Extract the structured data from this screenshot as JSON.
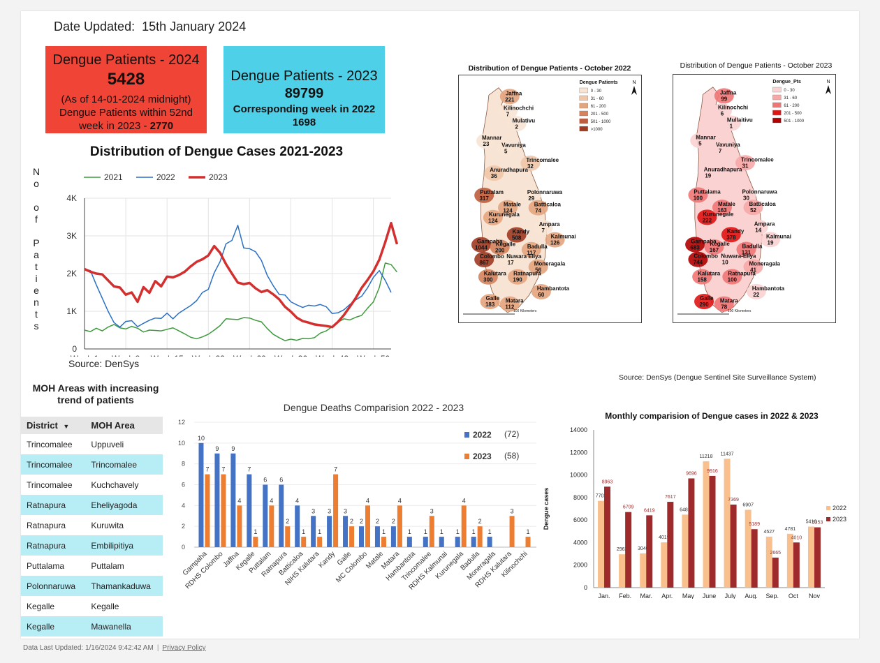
{
  "header": {
    "date_label": "Date Updated:",
    "date_value": "15th January 2024"
  },
  "kpi_2024": {
    "title": "Dengue Patients - 2024",
    "value": "5428",
    "note": "(As of 14-01-2024 midnight)",
    "sub_prefix": "Dengue Patients within 52nd week in 2023 - ",
    "sub_value": "2770",
    "color": "#f04436"
  },
  "kpi_2023": {
    "title": "Dengue Patients - 2023",
    "value": "89799",
    "sub_label": "Corresponding week in 2022",
    "sub_value": "1698",
    "color": "#4dd0e8"
  },
  "line_source": "Source: DenSys",
  "map_source": "Source: DenSys (Dengue Sentinel Site Surveillance System)",
  "moh": {
    "title": "MOH Areas with increasing trend of patients",
    "col_district": "District",
    "col_area": "MOH Area",
    "rows": [
      {
        "district": "Trincomalee",
        "area": "Uppuveli"
      },
      {
        "district": "Trincomalee",
        "area": "Trincomalee"
      },
      {
        "district": "Trincomalee",
        "area": "Kuchchavely"
      },
      {
        "district": "Ratnapura",
        "area": "Eheliyagoda"
      },
      {
        "district": "Ratnapura",
        "area": "Kuruwita"
      },
      {
        "district": "Ratnapura",
        "area": "Embilipitiya"
      },
      {
        "district": "Puttalama",
        "area": "Puttalam"
      },
      {
        "district": "Polonnaruwa",
        "area": "Thamankaduwa"
      },
      {
        "district": "Kegalle",
        "area": "Kegalle"
      },
      {
        "district": "Kegalle",
        "area": "Mawanella"
      }
    ]
  },
  "maps": [
    {
      "title": "Distribution of Dengue Patients - October 2022",
      "legend_title": "Dengue Patients",
      "legend": [
        "0 - 30",
        "31 - 60",
        "61 - 200",
        "201 - 500",
        "501 - 1000",
        ">1000"
      ],
      "legend_colors": [
        "#f7e4d4",
        "#f0c7a8",
        "#e4a47e",
        "#d4835c",
        "#bf5c3c",
        "#9e3a22"
      ],
      "scale": "100 Kilometers",
      "districts": [
        {
          "name": "Jaffna",
          "value": "221"
        },
        {
          "name": "Kilinochchi",
          "value": "7"
        },
        {
          "name": "Mulativu",
          "value": "2"
        },
        {
          "name": "Mannar",
          "value": "23"
        },
        {
          "name": "Vavuniya",
          "value": "5"
        },
        {
          "name": "Trincomalee",
          "value": "32"
        },
        {
          "name": "Anuradhapura",
          "value": "36"
        },
        {
          "name": "Puttalam",
          "value": "317"
        },
        {
          "name": "Polonnaruwa",
          "value": "29"
        },
        {
          "name": "Matale",
          "value": "124"
        },
        {
          "name": "Batticaloa",
          "value": "74"
        },
        {
          "name": "Kurunegala",
          "value": "124"
        },
        {
          "name": "Kandy",
          "value": "508"
        },
        {
          "name": "Ampara",
          "value": "7"
        },
        {
          "name": "Gampaha",
          "value": "1044"
        },
        {
          "name": "Kegalle",
          "value": "200"
        },
        {
          "name": "Kalmunai",
          "value": "126"
        },
        {
          "name": "Badulla",
          "value": "117"
        },
        {
          "name": "Colombo",
          "value": "867"
        },
        {
          "name": "Nuwara Eliya",
          "value": "17"
        },
        {
          "name": "Moneragala",
          "value": "56"
        },
        {
          "name": "Kalutara",
          "value": "300"
        },
        {
          "name": "Ratnapura",
          "value": "190"
        },
        {
          "name": "Hambantota",
          "value": "60"
        },
        {
          "name": "Galle",
          "value": "183"
        },
        {
          "name": "Matara",
          "value": "112"
        }
      ]
    },
    {
      "title": "Distribution of Dengue Patients - October 2023",
      "legend_title": "Dengue_Pts",
      "legend": [
        "0 - 30",
        "31 - 60",
        "61 - 200",
        "201 - 500",
        "501 - 1000"
      ],
      "legend_colors": [
        "#fbd2d2",
        "#f7a7a7",
        "#f07575",
        "#e01414",
        "#b00000"
      ],
      "scale": "100 Kilometers",
      "districts": [
        {
          "name": "Jaffna",
          "value": "99"
        },
        {
          "name": "Kilinochchi",
          "value": "6"
        },
        {
          "name": "Mullaitivu",
          "value": "1"
        },
        {
          "name": "Mannar",
          "value": "5"
        },
        {
          "name": "Vavuniya",
          "value": "7"
        },
        {
          "name": "Trincomalee",
          "value": "31"
        },
        {
          "name": "Anuradhapura",
          "value": "19"
        },
        {
          "name": "Puttalama",
          "value": "100"
        },
        {
          "name": "Polonnaruwa",
          "value": "30"
        },
        {
          "name": "Matale",
          "value": "163"
        },
        {
          "name": "Batticaloa",
          "value": "52"
        },
        {
          "name": "Kurunegale",
          "value": "222"
        },
        {
          "name": "Kandy",
          "value": "378"
        },
        {
          "name": "Ampara",
          "value": "14"
        },
        {
          "name": "Gampaha",
          "value": "683"
        },
        {
          "name": "Kegalle",
          "value": "167"
        },
        {
          "name": "Kalmunai",
          "value": "19"
        },
        {
          "name": "Badulla",
          "value": "131"
        },
        {
          "name": "Colombo",
          "value": "744"
        },
        {
          "name": "Nuwara-Eliya",
          "value": "10"
        },
        {
          "name": "Moneragala",
          "value": "41"
        },
        {
          "name": "Kalutara",
          "value": "158"
        },
        {
          "name": "Ratnapura",
          "value": "100"
        },
        {
          "name": "Hambantota",
          "value": "22"
        },
        {
          "name": "Galle",
          "value": "290"
        },
        {
          "name": "Matara",
          "value": "78"
        }
      ]
    }
  ],
  "footer": {
    "updated": "Data Last Updated: 1/16/2024 9:42:42 AM",
    "privacy": "Privacy Policy"
  },
  "chart_data": [
    {
      "type": "line",
      "title": "Distribution of Dengue Cases 2021-2023",
      "ylabel": "No of Patients",
      "xlabel": "",
      "x_ticks": [
        "Week 1",
        "Week 8",
        "Week 15",
        "Week 22",
        "Week 29",
        "Week 36",
        "Week 43",
        "Week 50"
      ],
      "y_ticks": [
        "0",
        "1K",
        "2K",
        "3K",
        "4K"
      ],
      "ylim": [
        0,
        4000
      ],
      "xlim": [
        1,
        53
      ],
      "grid": true,
      "legend_position": "top",
      "series": [
        {
          "name": "2021",
          "color": "#3c9a3c",
          "stroke": 1.5,
          "values": [
            500,
            460,
            550,
            480,
            580,
            650,
            560,
            530,
            600,
            550,
            450,
            500,
            490,
            480,
            520,
            560,
            480,
            400,
            310,
            270,
            320,
            390,
            500,
            620,
            800,
            790,
            780,
            830,
            820,
            760,
            720,
            540,
            390,
            300,
            220,
            260,
            230,
            280,
            270,
            300,
            420,
            480,
            590,
            710,
            800,
            770,
            840,
            890,
            1080,
            1250,
            1630,
            2280,
            2240,
            2040
          ]
        },
        {
          "name": "2022",
          "color": "#2a6fc4",
          "stroke": 1.5,
          "values": [
            2120,
            2080,
            1700,
            1350,
            1000,
            700,
            580,
            730,
            750,
            590,
            680,
            760,
            820,
            810,
            950,
            800,
            950,
            1050,
            1150,
            1280,
            1500,
            1580,
            2020,
            2320,
            2790,
            2880,
            3280,
            2680,
            2660,
            2580,
            2350,
            1950,
            1680,
            1450,
            1430,
            1250,
            1170,
            1100,
            1160,
            1140,
            1180,
            1120,
            940,
            960,
            1040,
            1180,
            1300,
            1400,
            1620,
            1900,
            2080,
            1820,
            1500
          ]
        },
        {
          "name": "2023",
          "color": "#d32f2f",
          "stroke": 3.5,
          "values": [
            2120,
            2050,
            2000,
            1980,
            1820,
            1660,
            1630,
            1440,
            1500,
            1250,
            1640,
            1490,
            1800,
            1660,
            1920,
            1900,
            1960,
            2050,
            2190,
            2310,
            2380,
            2480,
            2730,
            2550,
            2250,
            2000,
            1760,
            1720,
            1750,
            1610,
            1510,
            1560,
            1450,
            1320,
            1120,
            990,
            830,
            740,
            700,
            650,
            630,
            610,
            580,
            720,
            900,
            1120,
            1350,
            1620,
            1830,
            2060,
            2370,
            2830,
            3340,
            2780
          ]
        }
      ]
    },
    {
      "type": "bar",
      "title": "Dengue Deaths Comparision 2022 - 2023",
      "ylim": [
        0,
        12
      ],
      "y_ticks": [
        0,
        2,
        4,
        6,
        8,
        10,
        12
      ],
      "categories": [
        "Gampaha",
        "RDHS Colombo",
        "Jaffna",
        "Kegalle",
        "Puttalam",
        "Ratnapura",
        "Batticaloa",
        "NIHS Kalutara",
        "Kandy",
        "Galle",
        "MC Colombo",
        "Matale",
        "Matara",
        "Hambantota",
        "Trincomalee",
        "RDHS Kalmunai",
        "Kurunegala",
        "Badulla",
        "Moneragala",
        "RDHS Kalutara",
        "Kilinochchi"
      ],
      "legend_position": "top-right",
      "series": [
        {
          "name": "2022",
          "total": "(72)",
          "color": "#4472c4",
          "values": [
            10,
            9,
            9,
            7,
            6,
            6,
            4,
            3,
            3,
            3,
            2,
            2,
            2,
            1,
            1,
            1,
            1,
            1,
            1,
            null,
            null
          ]
        },
        {
          "name": "2023",
          "total": "(58)",
          "color": "#ed7d31",
          "values": [
            7,
            7,
            4,
            1,
            4,
            2,
            1,
            1,
            7,
            2,
            4,
            1,
            4,
            null,
            3,
            null,
            4,
            2,
            null,
            3,
            1
          ]
        }
      ]
    },
    {
      "type": "bar",
      "title": "Monthly comparision of Dengue cases in 2022 & 2023",
      "ylabel": "Dengue cases",
      "ylim": [
        0,
        14000
      ],
      "y_ticks": [
        0,
        2000,
        4000,
        6000,
        8000,
        10000,
        12000,
        14000
      ],
      "categories": [
        "Jan.",
        "Feb.",
        "Mar.",
        "Apr.",
        "May",
        "June",
        "July",
        "Aug.",
        "Sep.",
        "Oct",
        "Nov"
      ],
      "legend_position": "right",
      "series": [
        {
          "name": "2022",
          "color": "#f9c08e",
          "label_color": "#333333",
          "values": [
            7702,
            2962,
            3040,
            4019,
            6481,
            11218,
            11437,
            6907,
            4527,
            4781,
            5416
          ]
        },
        {
          "name": "2023",
          "color": "#9e2a2b",
          "label_color": "#9e2a2b",
          "values": [
            8963,
            6709,
            6419,
            7617,
            9696,
            9916,
            7369,
            5189,
            2665,
            4010,
            5353
          ]
        }
      ]
    }
  ]
}
